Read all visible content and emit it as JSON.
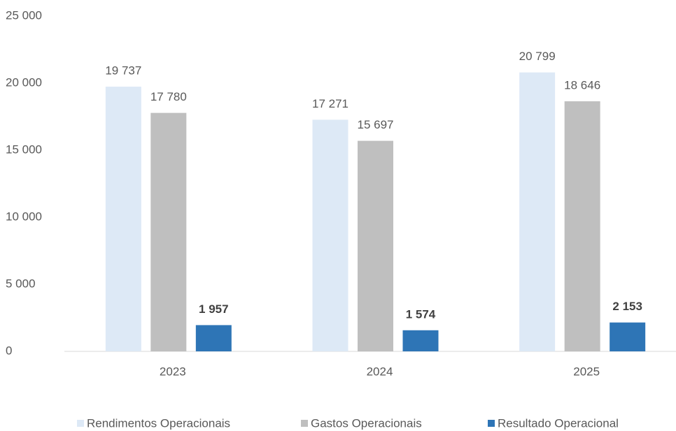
{
  "chart_data": {
    "type": "bar",
    "categories": [
      "2023",
      "2024",
      "2025"
    ],
    "series": [
      {
        "name": "Rendimentos Operacionais",
        "color": "#dde9f6",
        "values": [
          19737,
          17271,
          20799
        ],
        "value_labels": [
          "19 737",
          "17 271",
          "20 799"
        ]
      },
      {
        "name": "Gastos Operacionais",
        "color": "#bfbfbf",
        "values": [
          17780,
          15697,
          18646
        ],
        "value_labels": [
          "17 780",
          "15 697",
          "18 646"
        ]
      },
      {
        "name": "Resultado Operacional",
        "color": "#2e75b6",
        "values": [
          1957,
          1574,
          2153
        ],
        "value_labels": [
          "1 957",
          "1 574",
          "2 153"
        ]
      }
    ],
    "ylim": [
      0,
      25000
    ],
    "yticks": [
      {
        "value": 0,
        "label": "0"
      },
      {
        "value": 5000,
        "label": "5 000"
      },
      {
        "value": 10000,
        "label": "10 000"
      },
      {
        "value": 15000,
        "label": "15 000"
      },
      {
        "value": 20000,
        "label": "20 000"
      },
      {
        "value": 25000,
        "label": "25 000"
      }
    ],
    "grid": false,
    "legend": "bottom"
  }
}
